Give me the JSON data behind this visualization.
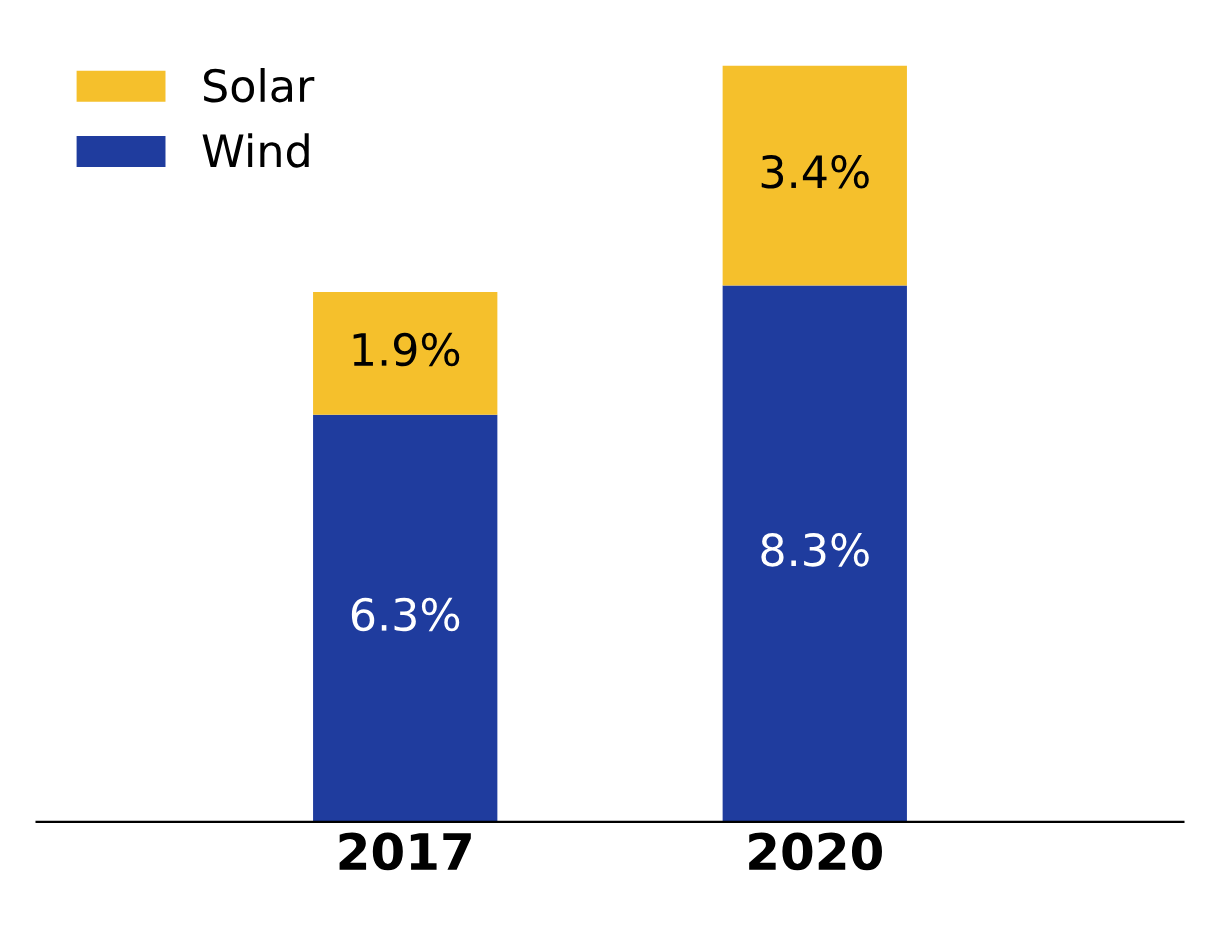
{
  "chart_data": {
    "type": "bar",
    "stacked": true,
    "categories": [
      "2017",
      "2020"
    ],
    "series": [
      {
        "name": "Wind",
        "color": "#1f3c9e",
        "values": [
          6.3,
          8.3
        ],
        "value_labels": [
          "6.3%",
          "8.3%"
        ]
      },
      {
        "name": "Solar",
        "color": "#f5c02c",
        "values": [
          1.9,
          3.4
        ],
        "value_labels": [
          "1.9%",
          "3.4%"
        ]
      }
    ],
    "legend": "top left",
    "grid": false
  }
}
